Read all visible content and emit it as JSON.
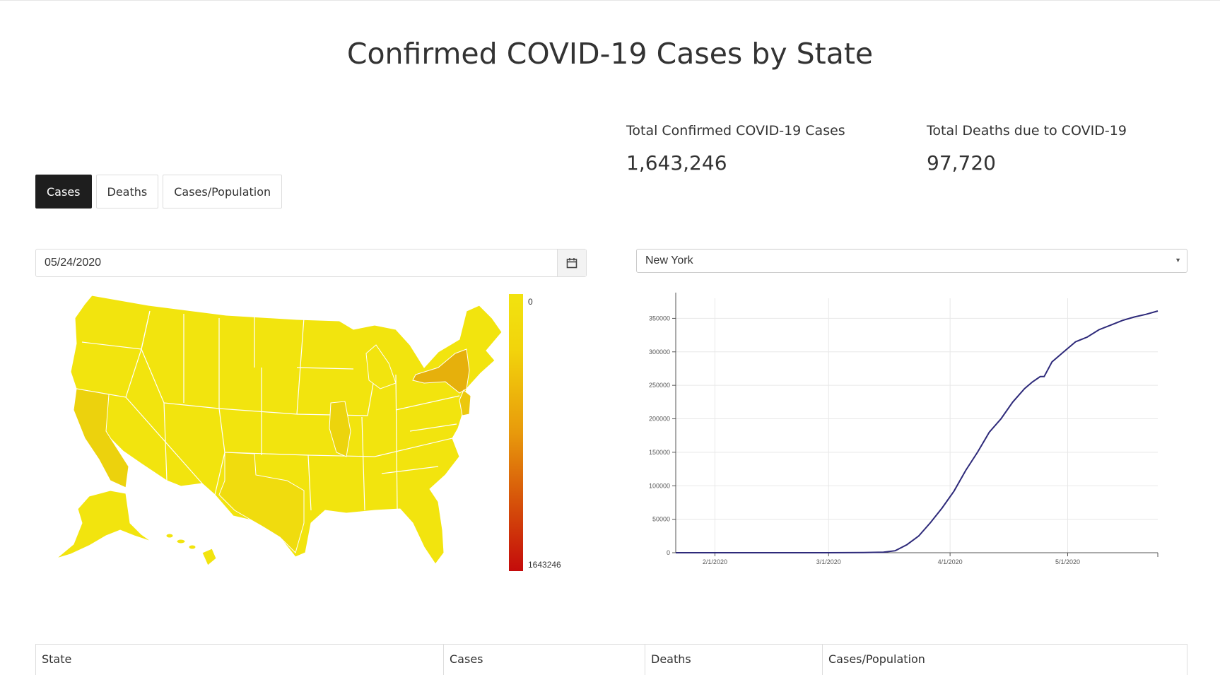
{
  "page": {
    "title": "Confirmed COVID-19 Cases by State"
  },
  "stats": {
    "cases_label": "Total Confirmed COVID-19 Cases",
    "cases_value": "1,643,246",
    "deaths_label": "Total Deaths due to COVID-19",
    "deaths_value": "97,720"
  },
  "tabs": [
    {
      "label": "Cases",
      "active": true
    },
    {
      "label": "Deaths",
      "active": false
    },
    {
      "label": "Cases/Population",
      "active": false
    }
  ],
  "date_picker": {
    "value": "05/24/2020",
    "icon": "calendar-icon"
  },
  "state_select": {
    "value": "New York",
    "icon": "caret-down-icon"
  },
  "map_legend": {
    "min_label": "0",
    "max_label": "1643246"
  },
  "colors": {
    "low": "#f2e30f",
    "mid": "#e89a0c",
    "high": "#c40b0b",
    "line": "#2e2a7a"
  },
  "chart_data": {
    "type": "line",
    "series": [
      {
        "x": [
          "1/22/2020",
          "2/1/2020",
          "3/1/2020",
          "3/10/2020",
          "3/15/2020",
          "3/18/2020",
          "3/21/2020",
          "3/24/2020",
          "3/27/2020",
          "3/30/2020",
          "4/2/2020",
          "4/5/2020",
          "4/8/2020",
          "4/11/2020",
          "4/14/2020",
          "4/17/2020",
          "4/20/2020",
          "4/22/2020",
          "4/24/2020",
          "4/25/2020",
          "4/27/2020",
          "4/30/2020",
          "5/3/2020",
          "5/6/2020",
          "5/9/2020",
          "5/12/2020",
          "5/15/2020",
          "5/18/2020",
          "5/21/2020",
          "5/24/2020"
        ],
        "y": [
          0,
          0,
          0,
          200,
          700,
          3000,
          12000,
          25000,
          45000,
          67000,
          92000,
          123000,
          150000,
          180000,
          200000,
          225000,
          245000,
          255000,
          263000,
          263000,
          285000,
          300000,
          315000,
          322000,
          333000,
          340000,
          347000,
          352000,
          356000,
          361000
        ]
      }
    ],
    "x_ticks": [
      "2/1/2020",
      "3/1/2020",
      "4/1/2020",
      "5/1/2020"
    ],
    "y_ticks": [
      "0",
      "50000",
      "100000",
      "150000",
      "200000",
      "250000",
      "300000",
      "350000"
    ],
    "ylim": [
      0,
      380000
    ],
    "grid": true
  },
  "table": {
    "headers": [
      "State",
      "Cases",
      "Deaths",
      "Cases/Population"
    ]
  }
}
